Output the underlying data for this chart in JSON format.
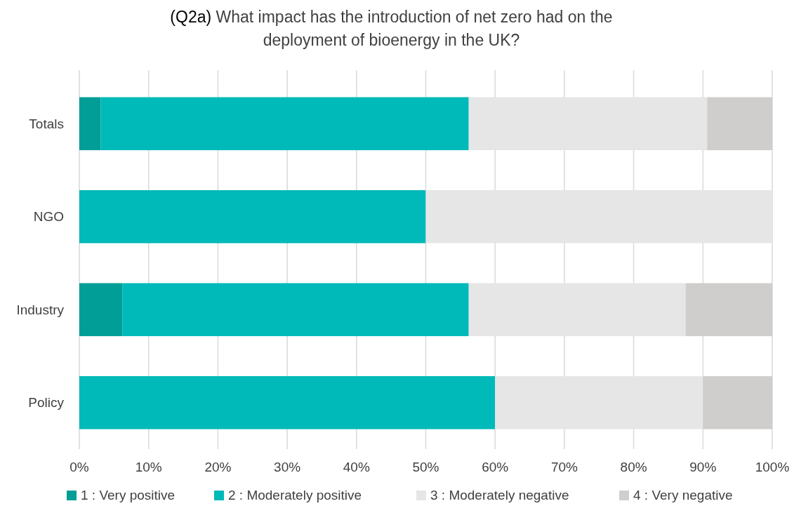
{
  "chart_data": {
    "type": "bar",
    "orientation": "horizontal",
    "stacked": true,
    "title": "(Q2a) What impact has the introduction of net zero had on the deployment of bioenergy in the UK?",
    "categories": [
      "Totals",
      "NGO",
      "Industry",
      "Policy"
    ],
    "series": [
      {
        "name": "1 : Very positive",
        "color": "#009e96",
        "values": [
          3.1,
          0,
          6.2,
          0
        ]
      },
      {
        "name": "2 : Moderately positive",
        "color": "#00b9b9",
        "values": [
          53.1,
          50,
          50,
          60
        ]
      },
      {
        "name": "3 : Moderately negative",
        "color": "#e6e6e6",
        "values": [
          34.4,
          50,
          31.3,
          30
        ]
      },
      {
        "name": "4 : Very negative",
        "color": "#d0cdcd",
        "values": [
          9.4,
          0,
          12.5,
          10
        ]
      }
    ],
    "xlim": [
      0,
      100
    ],
    "xticks": [
      {
        "value": 0,
        "label": "0%"
      },
      {
        "value": 10,
        "label": "10%"
      },
      {
        "value": 20,
        "label": "20%"
      },
      {
        "value": 30,
        "label": "30%"
      },
      {
        "value": 40,
        "label": "40%"
      },
      {
        "value": 50,
        "label": "50%"
      },
      {
        "value": 60,
        "label": "60%"
      },
      {
        "value": 70,
        "label": "70%"
      },
      {
        "value": 80,
        "label": "80%"
      },
      {
        "value": 90,
        "label": "90%"
      },
      {
        "value": 100,
        "label": "100%"
      }
    ],
    "grid": "x",
    "legend": "bottom"
  }
}
